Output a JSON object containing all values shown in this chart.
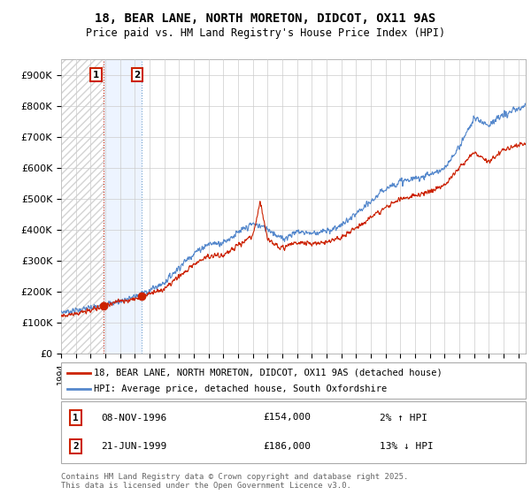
{
  "title": "18, BEAR LANE, NORTH MORETON, DIDCOT, OX11 9AS",
  "subtitle": "Price paid vs. HM Land Registry's House Price Index (HPI)",
  "ylim": [
    0,
    950000
  ],
  "yticks": [
    0,
    100000,
    200000,
    300000,
    400000,
    500000,
    600000,
    700000,
    800000,
    900000
  ],
  "ytick_labels": [
    "£0",
    "£100K",
    "£200K",
    "£300K",
    "£400K",
    "£500K",
    "£600K",
    "£700K",
    "£800K",
    "£900K"
  ],
  "xlim_start": 1994.0,
  "xlim_end": 2025.5,
  "hpi_color": "#5588cc",
  "price_color": "#cc2200",
  "annotation_box_color": "#cc2200",
  "legend_label_price": "18, BEAR LANE, NORTH MORETON, DIDCOT, OX11 9AS (detached house)",
  "legend_label_hpi": "HPI: Average price, detached house, South Oxfordshire",
  "annotation1_label": "1",
  "annotation1_date": "08-NOV-1996",
  "annotation1_price": "£154,000",
  "annotation1_hpi": "2% ↑ HPI",
  "annotation2_label": "2",
  "annotation2_date": "21-JUN-1999",
  "annotation2_price": "£186,000",
  "annotation2_hpi": "13% ↓ HPI",
  "footnote": "Contains HM Land Registry data © Crown copyright and database right 2025.\nThis data is licensed under the Open Government Licence v3.0.",
  "sale1_x": 1996.86,
  "sale1_y": 154000,
  "sale2_x": 1999.47,
  "sale2_y": 186000,
  "hpi_anchors_x": [
    1994,
    1995,
    1996,
    1997,
    1998,
    1999,
    2000,
    2001,
    2002,
    2003,
    2004,
    2005,
    2006,
    2007,
    2008,
    2009,
    2010,
    2011,
    2012,
    2013,
    2014,
    2015,
    2016,
    2017,
    2018,
    2019,
    2020,
    2021,
    2022,
    2023,
    2024,
    2025.5
  ],
  "hpi_anchors_y": [
    135000,
    140000,
    148000,
    158000,
    170000,
    185000,
    205000,
    230000,
    280000,
    325000,
    355000,
    360000,
    390000,
    420000,
    405000,
    370000,
    395000,
    390000,
    395000,
    415000,
    450000,
    490000,
    535000,
    555000,
    565000,
    580000,
    595000,
    670000,
    760000,
    740000,
    770000,
    800000
  ],
  "price_anchors_x": [
    1994,
    1995,
    1996,
    1996.86,
    1997,
    1998,
    1999,
    1999.47,
    2000,
    2001,
    2002,
    2003,
    2004,
    2005,
    2006,
    2007,
    2007.5,
    2008,
    2009,
    2010,
    2011,
    2012,
    2013,
    2014,
    2015,
    2016,
    2017,
    2018,
    2019,
    2020,
    2021,
    2022,
    2023,
    2024,
    2025.5
  ],
  "price_anchors_y": [
    125000,
    130000,
    140000,
    154000,
    160000,
    170000,
    178000,
    186000,
    195000,
    210000,
    250000,
    290000,
    315000,
    320000,
    350000,
    380000,
    490000,
    370000,
    340000,
    360000,
    355000,
    360000,
    375000,
    405000,
    440000,
    470000,
    500000,
    510000,
    525000,
    545000,
    600000,
    650000,
    620000,
    660000,
    680000
  ]
}
